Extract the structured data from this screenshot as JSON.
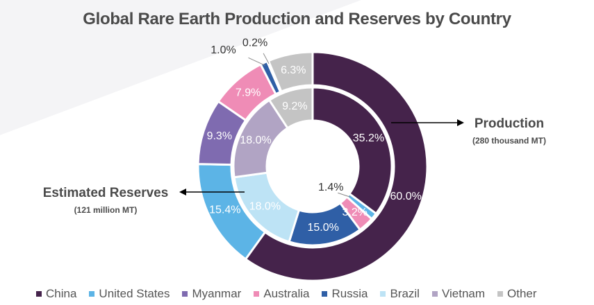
{
  "title": "Global Rare Earth Production and Reserves by Country",
  "callouts": {
    "production": {
      "label": "Production",
      "sub": "(280 thousand MT)"
    },
    "reserves": {
      "label": "Estimated Reserves",
      "sub": "(121 million MT)"
    }
  },
  "chart_data": {
    "type": "donut",
    "categories": [
      "China",
      "United States",
      "Myanmar",
      "Australia",
      "Russia",
      "Brazil",
      "Vietnam",
      "Other"
    ],
    "colors": [
      "#45234b",
      "#5cb4e6",
      "#7f6bb0",
      "#ef8cb6",
      "#2f5fa6",
      "#bde3f5",
      "#b1a4c4",
      "#c4c4c4"
    ],
    "series": [
      {
        "name": "Production",
        "ring": "outer",
        "values": [
          60.0,
          15.4,
          9.3,
          7.9,
          1.0,
          0.2,
          0.0,
          6.3
        ],
        "labels": [
          "60.0%",
          "15.4%",
          "9.3%",
          "7.9%",
          "1.0%",
          "0.2%",
          "",
          "6.3%"
        ]
      },
      {
        "name": "Estimated Reserves",
        "ring": "inner",
        "values": [
          35.2,
          1.4,
          0.0,
          3.2,
          15.0,
          18.0,
          18.0,
          9.2
        ],
        "labels": [
          "35.2%",
          "1.4%",
          "",
          "3.2%",
          "15.0%",
          "18.0%",
          "18.0%",
          "9.2%"
        ]
      }
    ]
  }
}
